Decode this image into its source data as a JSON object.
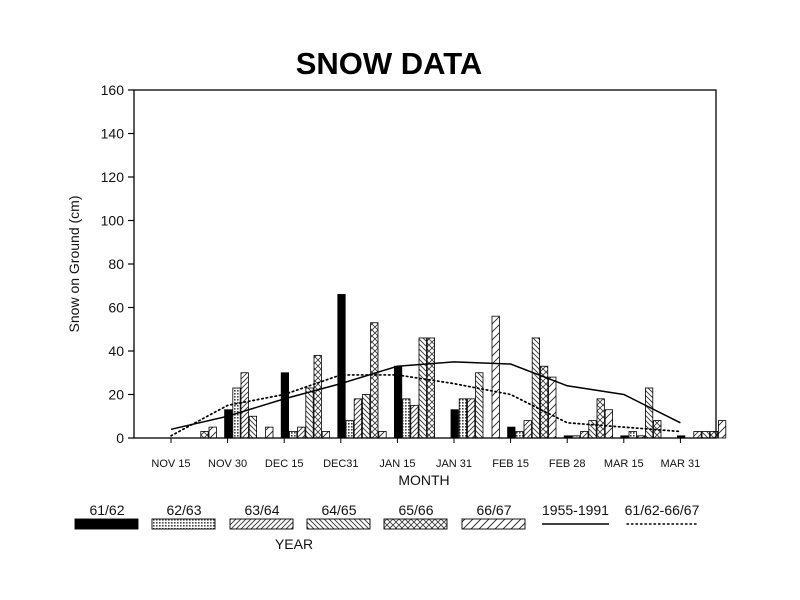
{
  "chart_data": {
    "type": "bar",
    "title": "SNOW DATA",
    "xlabel": "MONTH",
    "ylabel": "Snow on Ground (cm)",
    "legend_title": "YEAR",
    "ylim": [
      0,
      160
    ],
    "yticks": [
      0,
      20,
      40,
      60,
      80,
      100,
      120,
      140,
      160
    ],
    "categories": [
      "NOV 15",
      "NOV 30",
      "DEC 15",
      "DEC31",
      "JAN 15",
      "JAN 31",
      "FEB 15",
      "FEB 28",
      "MAR 15",
      "MAR 31"
    ],
    "series": [
      {
        "name": "61/62",
        "kind": "bar",
        "pattern": "solid",
        "values": [
          0,
          13,
          30,
          66,
          33,
          13,
          5,
          1,
          1,
          1
        ]
      },
      {
        "name": "62/63",
        "kind": "bar",
        "pattern": "fine",
        "values": [
          0,
          23,
          3,
          8,
          18,
          18,
          3,
          1,
          3,
          0
        ]
      },
      {
        "name": "63/64",
        "kind": "bar",
        "pattern": "diag",
        "values": [
          0,
          30,
          5,
          18,
          15,
          18,
          8,
          3,
          1,
          3
        ]
      },
      {
        "name": "64/65",
        "kind": "bar",
        "pattern": "backdiag",
        "values": [
          0,
          10,
          23,
          20,
          46,
          30,
          46,
          8,
          23,
          3
        ]
      },
      {
        "name": "65/66",
        "kind": "bar",
        "pattern": "cross",
        "values": [
          3,
          0,
          38,
          53,
          46,
          0,
          33,
          18,
          8,
          3
        ]
      },
      {
        "name": "66/67",
        "kind": "bar",
        "pattern": "wide",
        "values": [
          5,
          5,
          3,
          3,
          0,
          56,
          28,
          13,
          0,
          8
        ]
      },
      {
        "name": "1955-1991",
        "kind": "line",
        "style": "solid",
        "values": [
          4,
          10,
          18,
          25,
          33,
          35,
          34,
          24,
          20,
          7
        ]
      },
      {
        "name": "61/62-66/67",
        "kind": "line",
        "style": "dotted",
        "values": [
          1,
          15,
          20,
          29,
          29,
          25,
          20,
          7,
          5,
          3
        ]
      }
    ]
  }
}
